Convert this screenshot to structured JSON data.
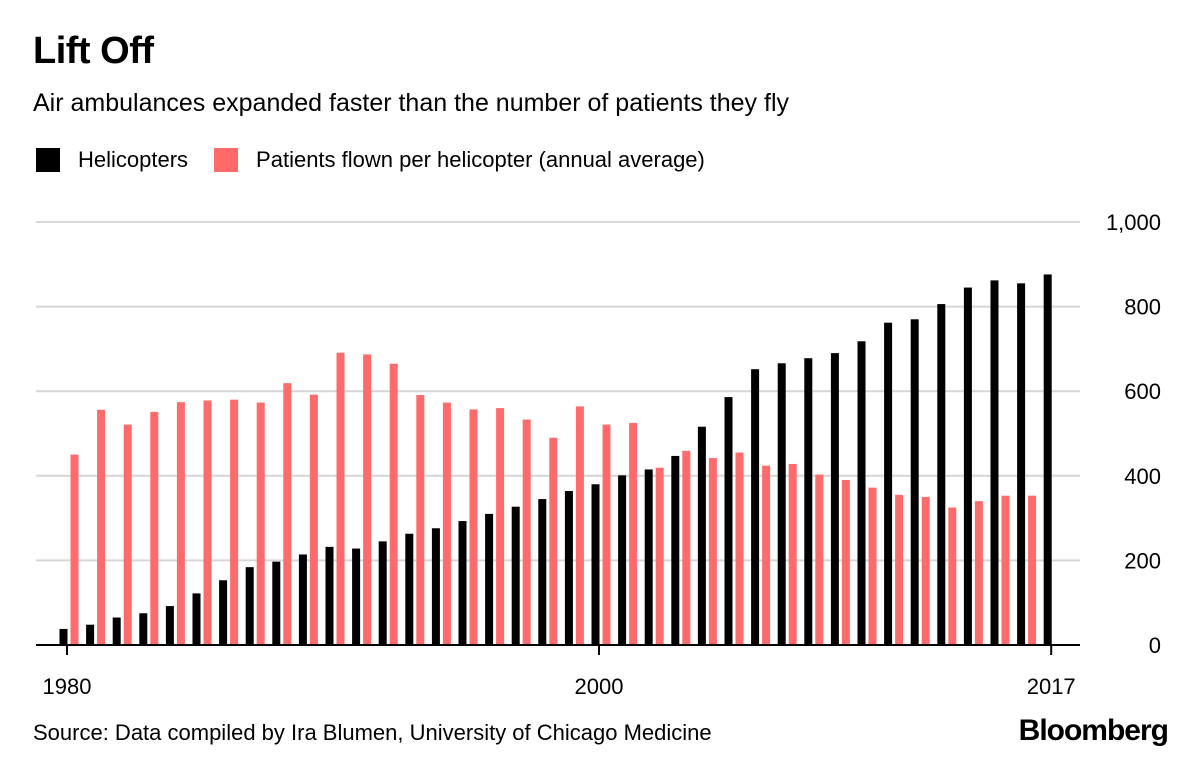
{
  "header": {
    "title": "Lift Off",
    "subtitle": "Air ambulances expanded faster than the number of patients they fly"
  },
  "footer": {
    "source": "Source: Data compiled by Ira Blumen, University of Chicago Medicine",
    "logo": "Bloomberg"
  },
  "colors": {
    "helicopters": "#000000",
    "patients": "#ff6b6b",
    "grid": "#d6d6d6"
  },
  "chart_data": {
    "type": "bar",
    "title": "Lift Off",
    "subtitle": "Air ambulances expanded faster than the number of patients they fly",
    "xlabel": "",
    "ylabel": "",
    "ylim": [
      0,
      1000
    ],
    "y_ticks": [
      0,
      200,
      400,
      600,
      800,
      1000
    ],
    "y_tick_labels": [
      "0",
      "200",
      "400",
      "600",
      "800",
      "1,000"
    ],
    "x_tick_labels": [
      "1980",
      "2000",
      "2017"
    ],
    "grid": true,
    "legend": "top-left",
    "x": [
      1980,
      1981,
      1982,
      1983,
      1984,
      1985,
      1986,
      1987,
      1988,
      1989,
      1990,
      1991,
      1992,
      1993,
      1994,
      1995,
      1996,
      1997,
      1998,
      1999,
      2000,
      2001,
      2002,
      2003,
      2004,
      2005,
      2006,
      2007,
      2008,
      2009,
      2010,
      2011,
      2012,
      2013,
      2014,
      2015,
      2016,
      2017
    ],
    "series": [
      {
        "name": "Helicopters",
        "values": [
          38,
          48,
          65,
          75,
          92,
          122,
          153,
          184,
          197,
          214,
          232,
          228,
          245,
          263,
          276,
          293,
          310,
          327,
          345,
          364,
          380,
          401,
          415,
          447,
          516,
          586,
          652,
          666,
          678,
          690,
          718,
          762,
          770,
          806,
          845,
          862,
          855,
          876
        ]
      },
      {
        "name": "Patients flown per helicopter (annual average)",
        "values": [
          450,
          556,
          521,
          551,
          574,
          578,
          580,
          573,
          619,
          592,
          691,
          687,
          665,
          591,
          573,
          557,
          560,
          533,
          490,
          564,
          521,
          525,
          419,
          459,
          442,
          455,
          424,
          428,
          403,
          390,
          372,
          355,
          350,
          325,
          340,
          353,
          353,
          null
        ]
      }
    ]
  }
}
